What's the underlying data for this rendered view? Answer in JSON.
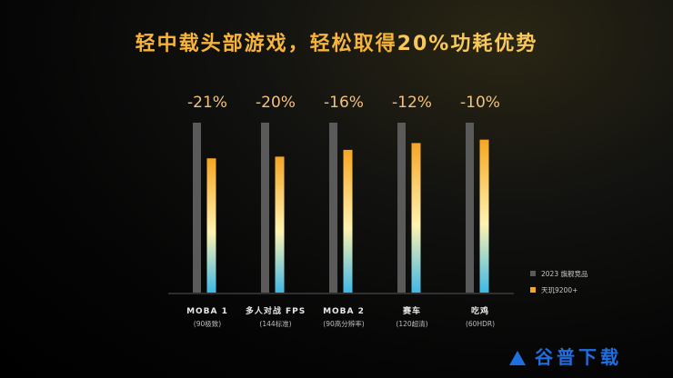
{
  "title": {
    "part1": "轻中载头部游戏，轻松取得",
    "part2": "20%功耗优势"
  },
  "watermark": "谷普下载",
  "colors": {
    "baseline": "#5a5a5a",
    "gradient_top": "#f5a623",
    "gradient_mid": "#fff3b0",
    "gradient_bottom": "#3fb8e6",
    "accent": "#f6b53a"
  },
  "chart_data": {
    "type": "bar",
    "categories": [
      "MOBA 1",
      "多人对战 FPS",
      "MOBA 2",
      "赛车",
      "吃鸡"
    ],
    "subcategories": [
      "(90极致)",
      "(144标准)",
      "(90高分辨率)",
      "(120超清)",
      "(60HDR)"
    ],
    "annotations": [
      "-21%",
      "-20%",
      "-16%",
      "-12%",
      "-10%"
    ],
    "series": [
      {
        "name": "2023 旗舰竞品",
        "values": [
          100,
          100,
          100,
          100,
          100
        ]
      },
      {
        "name": "天玑9200+",
        "values": [
          79,
          80,
          84,
          88,
          90
        ]
      }
    ],
    "ylim": [
      0,
      100
    ],
    "legend": "bottom-right"
  }
}
